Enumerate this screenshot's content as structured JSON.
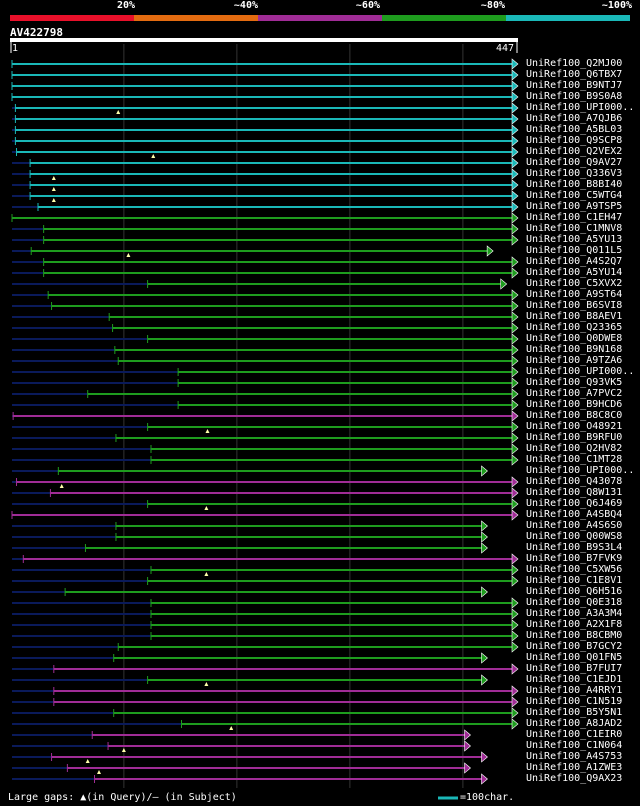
{
  "legend": {
    "labels": [
      "20%",
      "~40%",
      "~60%",
      "~80%",
      "~100%"
    ],
    "colors": [
      "#e8102a",
      "#e36b10",
      "#a02c96",
      "#1e9c1e",
      "#1ab8b8"
    ]
  },
  "query": {
    "id": "AV422798",
    "start": "1",
    "end": "447",
    "length": 447
  },
  "footer": {
    "gaps_text": "Large gaps: ▲(in Query)/– (in Subject)",
    "scale_text": "=100char."
  },
  "colors": {
    "bg": "#000000",
    "dim_line": "#0a1a5a",
    "grid": "#333333",
    "gap_marker": "#ffffaa"
  },
  "hits": [
    {
      "name": "UniRef100_Q2MJ00",
      "color": "#1ab8b8",
      "dim_start": 1,
      "start": 1,
      "end": 447,
      "tri": true
    },
    {
      "name": "UniRef100_Q6TBX7",
      "color": "#1ab8b8",
      "dim_start": 1,
      "start": 1,
      "end": 447,
      "tri": true
    },
    {
      "name": "UniRef100_B9NTJ7",
      "color": "#1ab8b8",
      "dim_start": 1,
      "start": 1,
      "end": 447,
      "tri": true
    },
    {
      "name": "UniRef100_B9S0A8",
      "color": "#1ab8b8",
      "dim_start": 1,
      "start": 1,
      "end": 447,
      "tri": true
    },
    {
      "name": "UniRef100_UPI000..",
      "color": "#1ab8b8",
      "dim_start": 1,
      "start": 4,
      "end": 447,
      "tri": true,
      "gap": 95
    },
    {
      "name": "UniRef100_A7QJB6",
      "color": "#1ab8b8",
      "dim_start": 1,
      "start": 4,
      "end": 447,
      "tri": true
    },
    {
      "name": "UniRef100_A5BL03",
      "color": "#1ab8b8",
      "dim_start": 1,
      "start": 4,
      "end": 447,
      "tri": true
    },
    {
      "name": "UniRef100_Q9SCP8",
      "color": "#1ab8b8",
      "dim_start": 1,
      "start": 4,
      "end": 447,
      "tri": true
    },
    {
      "name": "UniRef100_Q2VEX2",
      "color": "#1ab8b8",
      "dim_start": 1,
      "start": 5,
      "end": 447,
      "tri": true,
      "gap": 126
    },
    {
      "name": "UniRef100_Q9AV27",
      "color": "#1ab8b8",
      "dim_start": 1,
      "start": 17,
      "end": 447,
      "tri": true
    },
    {
      "name": "UniRef100_Q336V3",
      "color": "#1ab8b8",
      "dim_start": 1,
      "start": 17,
      "end": 447,
      "tri": true,
      "gap": 38
    },
    {
      "name": "UniRef100_B8BI40",
      "color": "#1ab8b8",
      "dim_start": 1,
      "start": 17,
      "end": 447,
      "tri": true,
      "gap": 38
    },
    {
      "name": "UniRef100_C5WTG4",
      "color": "#1ab8b8",
      "dim_start": 1,
      "start": 17,
      "end": 447,
      "tri": true,
      "gap": 38
    },
    {
      "name": "UniRef100_A9TSP5",
      "color": "#1ab8b8",
      "dim_start": 1,
      "start": 24,
      "end": 447,
      "tri": true
    },
    {
      "name": "UniRef100_C1EH47",
      "color": "#1e9c1e",
      "dim_start": 1,
      "start": 1,
      "end": 447,
      "tri": true
    },
    {
      "name": "UniRef100_C1MNV8",
      "color": "#1e9c1e",
      "dim_start": 1,
      "start": 29,
      "end": 447,
      "tri": true
    },
    {
      "name": "UniRef100_A5YU13",
      "color": "#1e9c1e",
      "dim_start": 1,
      "start": 29,
      "end": 447,
      "tri": true
    },
    {
      "name": "UniRef100_Q011L5",
      "color": "#1e9c1e",
      "dim_start": 1,
      "start": 18,
      "end": 425,
      "tri": true,
      "gap": 104
    },
    {
      "name": "UniRef100_A4S2Q7",
      "color": "#1e9c1e",
      "dim_start": 1,
      "start": 29,
      "end": 447,
      "tri": true
    },
    {
      "name": "UniRef100_A5YU14",
      "color": "#1e9c1e",
      "dim_start": 1,
      "start": 29,
      "end": 447,
      "tri": true
    },
    {
      "name": "UniRef100_C5XVX2",
      "color": "#1e9c1e",
      "dim_start": 1,
      "start": 121,
      "end": 437,
      "tri": true
    },
    {
      "name": "UniRef100_A9ST64",
      "color": "#1e9c1e",
      "dim_start": 1,
      "start": 33,
      "end": 447,
      "tri": true
    },
    {
      "name": "UniRef100_B6SVI8",
      "color": "#1e9c1e",
      "dim_start": 1,
      "start": 36,
      "end": 447,
      "tri": true
    },
    {
      "name": "UniRef100_B8AEV1",
      "color": "#1e9c1e",
      "dim_start": 1,
      "start": 87,
      "end": 447,
      "tri": true
    },
    {
      "name": "UniRef100_Q23365",
      "color": "#1e9c1e",
      "dim_start": 1,
      "start": 90,
      "end": 447,
      "tri": true
    },
    {
      "name": "UniRef100_Q0DWE8",
      "color": "#1e9c1e",
      "dim_start": 1,
      "start": 121,
      "end": 447,
      "tri": true
    },
    {
      "name": "UniRef100_B9N168",
      "color": "#1e9c1e",
      "dim_start": 1,
      "start": 92,
      "end": 447,
      "tri": true
    },
    {
      "name": "UniRef100_A9TZA6",
      "color": "#1e9c1e",
      "dim_start": 1,
      "start": 95,
      "end": 447,
      "tri": true
    },
    {
      "name": "UniRef100_UPI000..",
      "color": "#1e9c1e",
      "dim_start": 1,
      "start": 148,
      "end": 447,
      "tri": true
    },
    {
      "name": "UniRef100_Q93VK5",
      "color": "#1e9c1e",
      "dim_start": 1,
      "start": 148,
      "end": 447,
      "tri": true
    },
    {
      "name": "UniRef100_A7PVC2",
      "color": "#1e9c1e",
      "dim_start": 1,
      "start": 68,
      "end": 447,
      "tri": true
    },
    {
      "name": "UniRef100_B9HCD6",
      "color": "#1e9c1e",
      "dim_start": 1,
      "start": 148,
      "end": 447,
      "tri": true
    },
    {
      "name": "UniRef100_B8C8C0",
      "color": "#a02c96",
      "dim_start": 1,
      "start": 2,
      "end": 447,
      "tri": true
    },
    {
      "name": "UniRef100_O48921",
      "color": "#1e9c1e",
      "dim_start": 1,
      "start": 121,
      "end": 447,
      "tri": true,
      "gap": 174
    },
    {
      "name": "UniRef100_B9RFU0",
      "color": "#1e9c1e",
      "dim_start": 1,
      "start": 93,
      "end": 447,
      "tri": true
    },
    {
      "name": "UniRef100_Q2HV82",
      "color": "#1e9c1e",
      "dim_start": 1,
      "start": 124,
      "end": 447,
      "tri": true
    },
    {
      "name": "UniRef100_C1MT28",
      "color": "#1e9c1e",
      "dim_start": 1,
      "start": 124,
      "end": 447,
      "tri": true
    },
    {
      "name": "UniRef100_UPI000..",
      "color": "#1e9c1e",
      "dim_start": 1,
      "start": 42,
      "end": 420,
      "tri": true
    },
    {
      "name": "UniRef100_Q43078",
      "color": "#a02c96",
      "dim_start": 1,
      "start": 5,
      "end": 447,
      "tri": true,
      "gap": 45
    },
    {
      "name": "UniRef100_Q8W131",
      "color": "#a02c96",
      "dim_start": 1,
      "start": 35,
      "end": 447,
      "tri": true
    },
    {
      "name": "UniRef100_Q6J469",
      "color": "#1e9c1e",
      "dim_start": 1,
      "start": 121,
      "end": 447,
      "tri": true,
      "gap": 173
    },
    {
      "name": "UniRef100_A4SBQ4",
      "color": "#a02c96",
      "dim_start": 1,
      "start": 1,
      "end": 447,
      "tri": true
    },
    {
      "name": "UniRef100_A4S6S0",
      "color": "#1e9c1e",
      "dim_start": 1,
      "start": 93,
      "end": 420,
      "tri": true
    },
    {
      "name": "UniRef100_Q00WS8",
      "color": "#1e9c1e",
      "dim_start": 1,
      "start": 93,
      "end": 420,
      "tri": true
    },
    {
      "name": "UniRef100_B9S3L4",
      "color": "#1e9c1e",
      "dim_start": 1,
      "start": 66,
      "end": 420,
      "tri": true
    },
    {
      "name": "UniRef100_B7FVK9",
      "color": "#a02c96",
      "dim_start": 1,
      "start": 11,
      "end": 447,
      "tri": true
    },
    {
      "name": "UniRef100_C5XW56",
      "color": "#1e9c1e",
      "dim_start": 1,
      "start": 124,
      "end": 447,
      "tri": true,
      "gap": 173
    },
    {
      "name": "UniRef100_C1E8V1",
      "color": "#1e9c1e",
      "dim_start": 1,
      "start": 121,
      "end": 447,
      "tri": true
    },
    {
      "name": "UniRef100_Q6H516",
      "color": "#1e9c1e",
      "dim_start": 1,
      "start": 48,
      "end": 420,
      "tri": true
    },
    {
      "name": "UniRef100_Q0E318",
      "color": "#1e9c1e",
      "dim_start": 1,
      "start": 124,
      "end": 447,
      "tri": true
    },
    {
      "name": "UniRef100_A3A3M4",
      "color": "#1e9c1e",
      "dim_start": 1,
      "start": 124,
      "end": 447,
      "tri": true
    },
    {
      "name": "UniRef100_A2X1F8",
      "color": "#1e9c1e",
      "dim_start": 1,
      "start": 124,
      "end": 447,
      "tri": true
    },
    {
      "name": "UniRef100_B8CBM0",
      "color": "#1e9c1e",
      "dim_start": 1,
      "start": 124,
      "end": 447,
      "tri": true
    },
    {
      "name": "UniRef100_B7GCY2",
      "color": "#1e9c1e",
      "dim_start": 1,
      "start": 95,
      "end": 447,
      "tri": true
    },
    {
      "name": "UniRef100_Q01FN5",
      "color": "#1e9c1e",
      "dim_start": 1,
      "start": 91,
      "end": 420,
      "tri": true
    },
    {
      "name": "UniRef100_B7FUI7",
      "color": "#a02c96",
      "dim_start": 1,
      "start": 38,
      "end": 447,
      "tri": true
    },
    {
      "name": "UniRef100_C1EJD1",
      "color": "#1e9c1e",
      "dim_start": 1,
      "start": 121,
      "end": 420,
      "tri": true,
      "gap": 173
    },
    {
      "name": "UniRef100_A4RRY1",
      "color": "#a02c96",
      "dim_start": 1,
      "start": 38,
      "end": 447,
      "tri": true
    },
    {
      "name": "UniRef100_C1N519",
      "color": "#a02c96",
      "dim_start": 1,
      "start": 38,
      "end": 447,
      "tri": true
    },
    {
      "name": "UniRef100_B5Y5N1",
      "color": "#1e9c1e",
      "dim_start": 1,
      "start": 91,
      "end": 447,
      "tri": true
    },
    {
      "name": "UniRef100_A8JAD2",
      "color": "#1e9c1e",
      "dim_start": 1,
      "start": 151,
      "end": 447,
      "tri": true,
      "gap": 195
    },
    {
      "name": "UniRef100_C1EIR0",
      "color": "#a02c96",
      "dim_start": 1,
      "start": 72,
      "end": 405,
      "tri": true
    },
    {
      "name": "UniRef100_C1N064",
      "color": "#a02c96",
      "dim_start": 1,
      "start": 86,
      "end": 405,
      "tri": true,
      "gap": 100
    },
    {
      "name": "UniRef100_A4S753",
      "color": "#a02c96",
      "dim_start": 1,
      "start": 36,
      "end": 420,
      "tri": true,
      "gap": 68
    },
    {
      "name": "UniRef100_A1ZWE3",
      "color": "#a02c96",
      "dim_start": 1,
      "start": 50,
      "end": 405,
      "tri": true,
      "gap": 78
    },
    {
      "name": "UniRef100_Q9AX23",
      "color": "#a02c96",
      "dim_start": 1,
      "start": 74,
      "end": 420,
      "tri": true
    }
  ]
}
